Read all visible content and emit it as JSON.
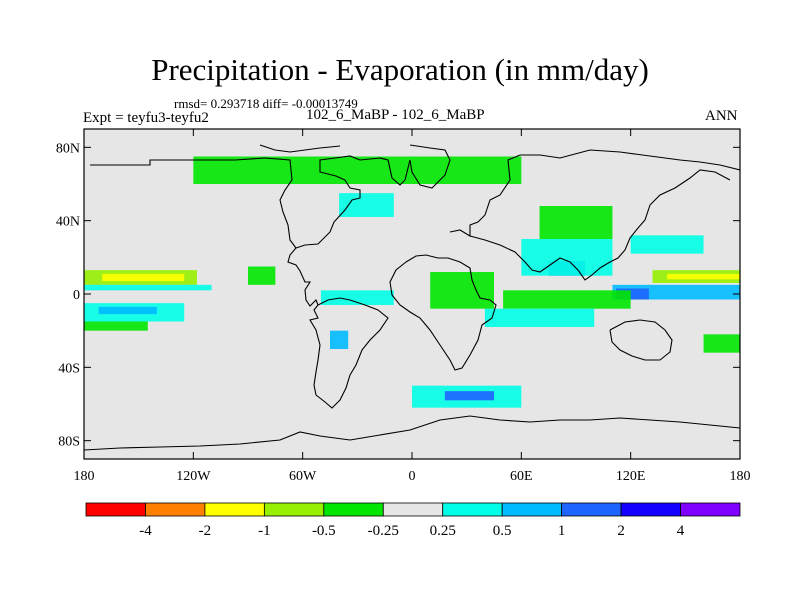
{
  "chart_data": {
    "type": "heatmap",
    "title": "Precipitation - Evaporation (in mm/day)",
    "stats_line": "rmsd= 0.293718 diff= -0.00013749",
    "runs_line": "102_6_MaBP - 102_6_MaBP",
    "experiment_label": "Expt = teyfu3-teyfu2",
    "season_label": "ANN",
    "x_axis": {
      "range": [
        -180,
        180
      ],
      "ticks": [
        -180,
        -120,
        -60,
        0,
        60,
        120,
        180
      ],
      "tick_labels": [
        "180",
        "120W",
        "60W",
        "0",
        "60E",
        "120E",
        "180"
      ]
    },
    "y_axis": {
      "range": [
        -90,
        90
      ],
      "ticks": [
        80,
        40,
        0,
        -40,
        -80
      ],
      "tick_labels": [
        "80N",
        "40N",
        "0",
        "40S",
        "80S"
      ]
    },
    "colorbar": {
      "colors": [
        "#ff0000",
        "#ff8000",
        "#ffff00",
        "#96f000",
        "#00e600",
        "#e6e6e6",
        "#00ffe6",
        "#00bbff",
        "#1e64ff",
        "#1400ff",
        "#8000ff"
      ],
      "labels": [
        "-4",
        "-2",
        "-1",
        "-0.5",
        "-0.25",
        "0.25",
        "0.5",
        "1",
        "2",
        "4"
      ]
    },
    "anomaly_regions": [
      {
        "name": "east-pacific-itcz-band",
        "lon": [
          -180,
          -118
        ],
        "lat": [
          5,
          13
        ],
        "value": -0.75
      },
      {
        "name": "east-pacific-itcz-core",
        "lon": [
          -170,
          -125
        ],
        "lat": [
          7,
          11
        ],
        "value": -1.2
      },
      {
        "name": "east-pacific-itcz-edge",
        "lon": [
          -180,
          -110
        ],
        "lat": [
          2,
          5
        ],
        "value": 0.35
      },
      {
        "name": "south-pacific-band",
        "lon": [
          -180,
          -125
        ],
        "lat": [
          -15,
          -5
        ],
        "value": 0.35
      },
      {
        "name": "south-pacific-core",
        "lon": [
          -172,
          -140
        ],
        "lat": [
          -11,
          -7
        ],
        "value": 0.7
      },
      {
        "name": "south-pacific-lower",
        "lon": [
          -180,
          -145
        ],
        "lat": [
          -20,
          -15
        ],
        "value": -0.3
      },
      {
        "name": "west-pacific-itcz",
        "lon": [
          132,
          180
        ],
        "lat": [
          6,
          13
        ],
        "value": -0.75
      },
      {
        "name": "west-pacific-core",
        "lon": [
          140,
          180
        ],
        "lat": [
          8,
          11
        ],
        "value": -1.2
      },
      {
        "name": "west-pacific-south",
        "lon": [
          110,
          180
        ],
        "lat": [
          -3,
          5
        ],
        "value": 0.6
      },
      {
        "name": "maritime-continent",
        "lon": [
          112,
          130
        ],
        "lat": [
          -3,
          3
        ],
        "value": 1.5
      },
      {
        "name": "indian-ocean-north",
        "lon": [
          50,
          120
        ],
        "lat": [
          -8,
          2
        ],
        "value": -0.35
      },
      {
        "name": "indian-ocean-south",
        "lon": [
          40,
          100
        ],
        "lat": [
          -18,
          -8
        ],
        "value": 0.35
      },
      {
        "name": "bay-of-bengal",
        "lon": [
          75,
          95
        ],
        "lat": [
          10,
          18
        ],
        "value": 1.5
      },
      {
        "name": "india-south-asia",
        "lon": [
          60,
          110
        ],
        "lat": [
          10,
          30
        ],
        "value": 0.4
      },
      {
        "name": "tibet-east-asia",
        "lon": [
          70,
          110
        ],
        "lat": [
          30,
          48
        ],
        "value": -0.3
      },
      {
        "name": "north-pacific-west",
        "lon": [
          120,
          160
        ],
        "lat": [
          22,
          32
        ],
        "value": 0.35
      },
      {
        "name": "atlantic-itcz",
        "lon": [
          -50,
          -10
        ],
        "lat": [
          -6,
          2
        ],
        "value": 0.4
      },
      {
        "name": "africa-tropics",
        "lon": [
          10,
          45
        ],
        "lat": [
          -8,
          12
        ],
        "value": -0.3
      },
      {
        "name": "south-america-east",
        "lon": [
          -45,
          -35
        ],
        "lat": [
          -30,
          -20
        ],
        "value": 0.8
      },
      {
        "name": "southern-ocean-indian",
        "lon": [
          0,
          60
        ],
        "lat": [
          -62,
          -50
        ],
        "value": 0.4
      },
      {
        "name": "southern-ocean-core",
        "lon": [
          18,
          45
        ],
        "lat": [
          -58,
          -53
        ],
        "value": 1.2
      },
      {
        "name": "north-atlantic",
        "lon": [
          -40,
          -10
        ],
        "lat": [
          42,
          55
        ],
        "value": 0.3
      },
      {
        "name": "central-america",
        "lon": [
          -90,
          -75
        ],
        "lat": [
          5,
          15
        ],
        "value": -0.4
      },
      {
        "name": "arctic-scatter",
        "lon": [
          -120,
          60
        ],
        "lat": [
          60,
          75
        ],
        "value": -0.3
      },
      {
        "name": "south-pacific-east",
        "lon": [
          160,
          180
        ],
        "lat": [
          -32,
          -22
        ],
        "value": -0.4
      }
    ]
  }
}
